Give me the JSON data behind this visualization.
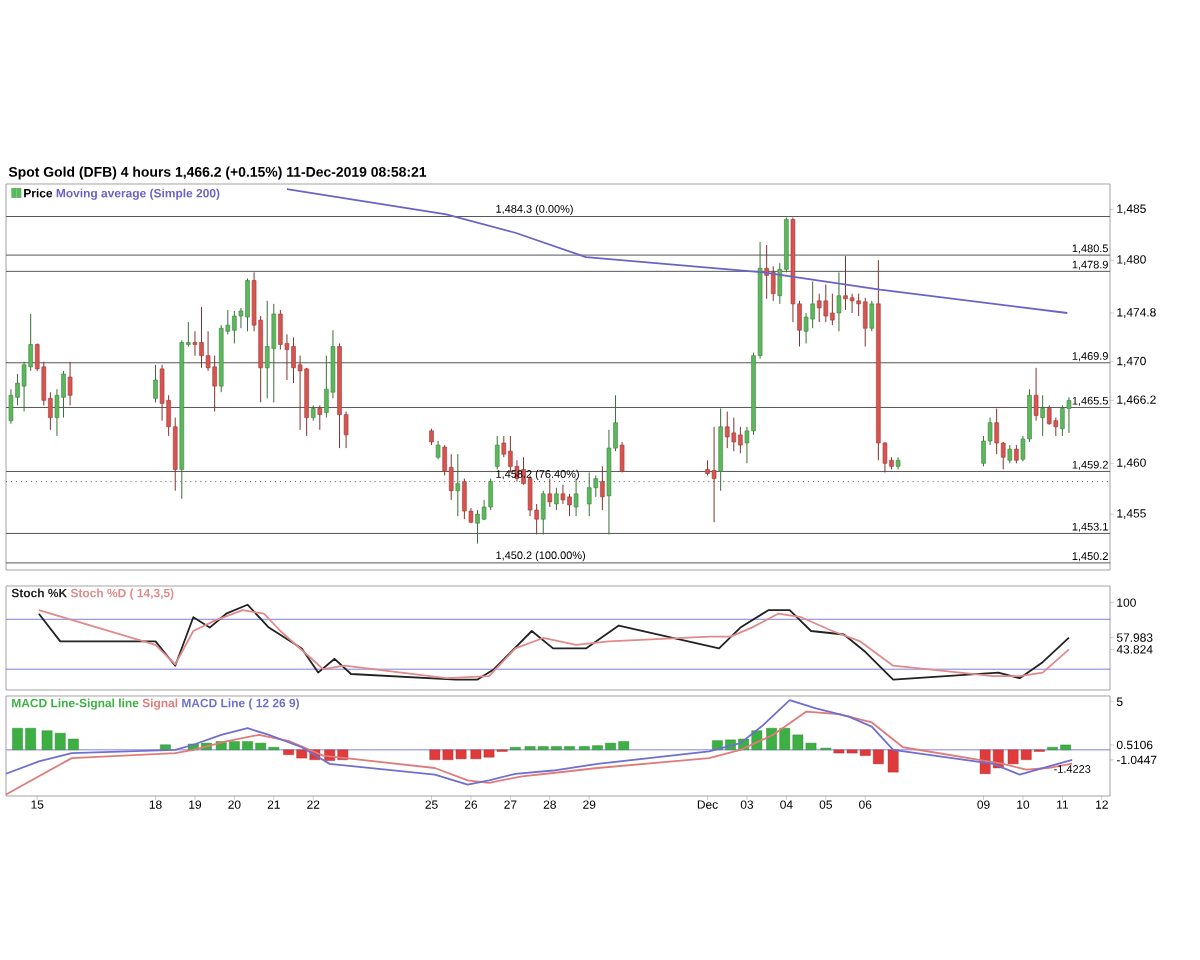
{
  "chart_data": [
    {
      "type": "candlestick",
      "title": "Spot Gold (DFB)   4 hours   1,466.2 (+0.15%)   11-Dec-2019 08:58:21",
      "legend": "top left",
      "tick_labels": "y",
      "xlim": [
        "2019-11-14T05:00",
        "2019-12-12T05:00"
      ],
      "ylim": [
        1449.5,
        1487.5
      ],
      "yticks": [
        {
          "value": 1455,
          "label": "1,455"
        },
        {
          "value": 1460,
          "label": "1,460"
        },
        {
          "value": 1466.2,
          "label": "1,466.2"
        },
        {
          "value": 1470,
          "label": "1,470"
        },
        {
          "value": 1474.8,
          "label": "1,474.8"
        },
        {
          "value": 1480,
          "label": "1,480"
        },
        {
          "value": 1485,
          "label": "1,485"
        }
      ],
      "series": [
        {
          "name": "Price",
          "type": "candlestick",
          "colors": [
            "#5cb85c",
            "#5cb85c",
            "#5cb85c",
            "#5cb85c",
            "#d9534f",
            "#d9534f",
            "#d9534f",
            "#5cb85c",
            "#5cb85c",
            "#d9534f",
            "#5cb85c",
            "#d9534f",
            "#d9534f",
            "#d9534f",
            "#5cb85c",
            "#5cb85c",
            "#d9534f",
            "#d9534f",
            "#d9534f",
            "#d9534f",
            "#5cb85c",
            "#5cb85c",
            "#5cb85c",
            "#5cb85c",
            "#5cb85c",
            "#d9534f",
            "#d9534f",
            "#5cb85c",
            "#5cb85c",
            "#d9534f",
            "#d9534f",
            "#d9534f",
            "#d9534f",
            "#d9534f",
            "#5cb85c",
            "#d9534f",
            "#5cb85c",
            "#5cb85c",
            "#d9534f",
            "#d9534f",
            "#d9534f",
            "#5cb85c",
            "#d9534f",
            "#d9534f",
            "#5cb85c",
            "#d9534f",
            "#d9534f",
            "#5cb85c",
            "#5cb85c",
            "#5cb85c",
            "#5cb85c",
            "#d9534f",
            "#d9534f",
            "#d9534f",
            "#d9534f",
            "#d9534f",
            "#d9534f",
            "#5cb85c",
            "#d9534f",
            "#5cb85c",
            "#d9534f",
            "#d9534f",
            "#5cb85c",
            "#5cb85c",
            "#5cb85c",
            "#d9534f",
            "#5cb85c",
            "#5cb85c",
            "#d9534f",
            "#d9534f",
            "#d9534f",
            "#5cb85c",
            "#d9534f",
            "#d9534f",
            "#d9534f",
            "#5cb85c",
            "#5cb85c",
            "#5cb85c",
            "#d9534f",
            "#d9534f",
            "#5cb85c",
            "#5cb85c",
            "#d9534f",
            "#d9534f",
            "#5cb85c",
            "#5cb85c",
            "#d9534f",
            "#d9534f",
            "#d9534f",
            "#5cb85c",
            "#d9534f",
            "#d9534f",
            "#d9534f",
            "#d9534f",
            "#5cb85c",
            "#d9534f",
            "#d9534f",
            "#d9534f",
            "#5cb85c",
            "#5cb85c",
            "#5cb85c",
            "#d9534f",
            "#d9534f",
            "#5cb85c",
            "#d9534f",
            "#5cb85c",
            "#5cb85c",
            "#d9534f",
            "#5cb85c",
            "#d9534f",
            "#d9534f",
            "#5cb85c",
            "#5cb85c"
          ],
          "x": [
            "2019-11-14T08:00",
            "2019-11-14T12:00",
            "2019-11-14T16:00",
            "2019-11-14T20:00",
            "2019-11-15T00:00",
            "2019-11-15T04:00",
            "2019-11-15T08:00",
            "2019-11-15T12:00",
            "2019-11-15T16:00",
            "2019-11-15T20:00",
            "2019-11-18T00:00",
            "2019-11-18T04:00",
            "2019-11-18T08:00",
            "2019-11-18T12:00",
            "2019-11-18T16:00",
            "2019-11-18T20:00",
            "2019-11-19T00:00",
            "2019-11-19T04:00",
            "2019-11-19T08:00",
            "2019-11-19T12:00",
            "2019-11-19T16:00",
            "2019-11-19T20:00",
            "2019-11-20T00:00",
            "2019-11-20T04:00",
            "2019-11-20T08:00",
            "2019-11-20T12:00",
            "2019-11-20T16:00",
            "2019-11-20T20:00",
            "2019-11-21T00:00",
            "2019-11-21T04:00",
            "2019-11-21T08:00",
            "2019-11-21T12:00",
            "2019-11-21T16:00",
            "2019-11-21T20:00",
            "2019-11-22T00:00",
            "2019-11-22T04:00",
            "2019-11-22T08:00",
            "2019-11-22T12:00",
            "2019-11-22T16:00",
            "2019-11-22T20:00",
            "2019-11-25T00:00",
            "2019-11-25T04:00",
            "2019-11-25T08:00",
            "2019-11-25T12:00",
            "2019-11-25T16:00",
            "2019-11-25T20:00",
            "2019-11-26T00:00",
            "2019-11-26T04:00",
            "2019-11-26T08:00",
            "2019-11-26T12:00",
            "2019-11-26T16:00",
            "2019-11-26T20:00",
            "2019-11-27T00:00",
            "2019-11-27T04:00",
            "2019-11-27T08:00",
            "2019-11-27T12:00",
            "2019-11-27T16:00",
            "2019-11-27T20:00",
            "2019-11-28T00:00",
            "2019-11-28T04:00",
            "2019-11-28T08:00",
            "2019-11-28T12:00",
            "2019-11-28T16:00",
            "2019-11-29T00:00",
            "2019-11-29T04:00",
            "2019-11-29T08:00",
            "2019-11-29T12:00",
            "2019-11-29T16:00",
            "2019-11-29T20:00",
            "2019-12-02T00:00",
            "2019-12-02T04:00",
            "2019-12-02T08:00",
            "2019-12-02T12:00",
            "2019-12-02T16:00",
            "2019-12-02T20:00",
            "2019-12-03T00:00",
            "2019-12-03T04:00",
            "2019-12-03T08:00",
            "2019-12-03T12:00",
            "2019-12-03T16:00",
            "2019-12-03T20:00",
            "2019-12-04T00:00",
            "2019-12-04T04:00",
            "2019-12-04T08:00",
            "2019-12-04T12:00",
            "2019-12-04T16:00",
            "2019-12-04T20:00",
            "2019-12-05T00:00",
            "2019-12-05T04:00",
            "2019-12-05T08:00",
            "2019-12-05T12:00",
            "2019-12-05T16:00",
            "2019-12-05T20:00",
            "2019-12-06T00:00",
            "2019-12-06T04:00",
            "2019-12-06T08:00",
            "2019-12-06T12:00",
            "2019-12-06T16:00",
            "2019-12-06T20:00",
            "2019-12-09T00:00",
            "2019-12-09T04:00",
            "2019-12-09T08:00",
            "2019-12-09T12:00",
            "2019-12-09T16:00",
            "2019-12-09T20:00",
            "2019-12-10T00:00",
            "2019-12-10T04:00",
            "2019-12-10T08:00",
            "2019-12-10T12:00",
            "2019-12-10T16:00",
            "2019-12-10T20:00",
            "2019-12-11T00:00",
            "2019-12-11T04:00"
          ],
          "ohlc": [
            [
              1464.2,
              1467.3,
              1463.9,
              1466.7
            ],
            [
              1466.5,
              1468.8,
              1465.7,
              1467.9
            ],
            [
              1467.6,
              1470.0,
              1465.1,
              1469.7
            ],
            [
              1469.5,
              1474.7,
              1469.1,
              1471.7
            ],
            [
              1471.7,
              1471.8,
              1469.1,
              1469.3
            ],
            [
              1469.5,
              1470.0,
              1465.7,
              1466.2
            ],
            [
              1466.4,
              1467.0,
              1463.3,
              1464.5
            ],
            [
              1464.5,
              1467.3,
              1462.7,
              1466.7
            ],
            [
              1466.5,
              1469.1,
              1464.5,
              1468.8
            ],
            [
              1468.5,
              1470.0,
              1465.7,
              1466.7
            ],
            [
              1466.4,
              1469.7,
              1466.0,
              1468.2
            ],
            [
              1469.3,
              1469.7,
              1464.2,
              1465.9
            ],
            [
              1466.2,
              1466.7,
              1462.7,
              1463.6
            ],
            [
              1463.6,
              1464.5,
              1457.3,
              1459.4
            ],
            [
              1459.4,
              1472.1,
              1456.5,
              1471.9
            ],
            [
              1471.7,
              1473.9,
              1471.5,
              1471.9
            ],
            [
              1471.9,
              1473.0,
              1470.6,
              1471.7
            ],
            [
              1471.9,
              1475.4,
              1469.4,
              1470.6
            ],
            [
              1470.6,
              1473.0,
              1469.1,
              1469.4
            ],
            [
              1469.5,
              1470.6,
              1465.1,
              1467.6
            ],
            [
              1467.6,
              1473.6,
              1467.0,
              1473.3
            ],
            [
              1473.0,
              1475.1,
              1472.7,
              1473.6
            ],
            [
              1473.1,
              1475.0,
              1471.8,
              1474.5
            ],
            [
              1474.5,
              1475.3,
              1473.3,
              1475.0
            ],
            [
              1474.4,
              1478.2,
              1473.0,
              1478.0
            ],
            [
              1478.0,
              1478.8,
              1473.0,
              1473.6
            ],
            [
              1474.1,
              1474.5,
              1466.0,
              1469.4
            ],
            [
              1469.4,
              1476.0,
              1466.4,
              1471.5
            ],
            [
              1471.3,
              1475.7,
              1466.0,
              1474.7
            ],
            [
              1474.7,
              1475.1,
              1471.2,
              1471.7
            ],
            [
              1471.8,
              1472.7,
              1468.2,
              1471.2
            ],
            [
              1471.5,
              1472.4,
              1467.9,
              1469.4
            ],
            [
              1469.7,
              1470.6,
              1463.3,
              1469.1
            ],
            [
              1469.3,
              1469.4,
              1462.7,
              1464.5
            ],
            [
              1464.5,
              1465.7,
              1464.2,
              1465.4
            ],
            [
              1465.4,
              1465.7,
              1463.3,
              1464.8
            ],
            [
              1465.0,
              1470.6,
              1464.5,
              1467.3
            ],
            [
              1467.0,
              1473.1,
              1466.4,
              1471.5
            ],
            [
              1471.5,
              1471.8,
              1461.5,
              1464.8
            ],
            [
              1464.8,
              1465.1,
              1461.5,
              1462.8
            ],
            [
              1463.2,
              1463.4,
              1461.8,
              1462.1
            ],
            [
              1460.6,
              1462.2,
              1460.4,
              1461.8
            ],
            [
              1461.6,
              1461.8,
              1458.8,
              1459.2
            ],
            [
              1459.6,
              1460.9,
              1456.4,
              1457.3
            ],
            [
              1457.3,
              1460.9,
              1454.8,
              1458.0
            ],
            [
              1458.2,
              1458.5,
              1454.5,
              1455.3
            ],
            [
              1455.3,
              1455.6,
              1454.1,
              1454.2
            ],
            [
              1454.1,
              1455.4,
              1452.1,
              1455.0
            ],
            [
              1454.5,
              1456.4,
              1454.4,
              1455.7
            ],
            [
              1455.7,
              1458.5,
              1455.4,
              1458.2
            ],
            [
              1459.7,
              1462.7,
              1459.4,
              1461.8
            ],
            [
              1462.0,
              1462.7,
              1460.6,
              1460.9
            ],
            [
              1461.2,
              1462.7,
              1459.1,
              1459.7
            ],
            [
              1459.7,
              1460.3,
              1458.2,
              1458.5
            ],
            [
              1459.4,
              1460.6,
              1457.9,
              1458.0
            ],
            [
              1458.5,
              1458.8,
              1454.8,
              1455.4
            ],
            [
              1455.4,
              1456.0,
              1453.0,
              1454.5
            ],
            [
              1454.5,
              1457.3,
              1453.0,
              1457.0
            ],
            [
              1457.0,
              1458.5,
              1455.7,
              1456.2
            ],
            [
              1456.0,
              1457.6,
              1455.4,
              1457.0
            ],
            [
              1457.0,
              1457.9,
              1456.0,
              1456.4
            ],
            [
              1456.7,
              1457.0,
              1454.8,
              1455.9
            ],
            [
              1455.7,
              1458.5,
              1454.8,
              1457.0
            ],
            [
              1456.0,
              1459.1,
              1454.8,
              1457.6
            ],
            [
              1457.6,
              1458.8,
              1456.7,
              1458.5
            ],
            [
              1458.2,
              1459.7,
              1455.4,
              1456.7
            ],
            [
              1456.8,
              1463.3,
              1453.0,
              1461.5
            ],
            [
              1461.5,
              1466.7,
              1461.2,
              1464.0
            ],
            [
              1461.8,
              1462.1,
              1459.1,
              1459.2
            ],
            [
              1459.4,
              1460.3,
              1458.8,
              1459.0
            ],
            [
              1459.3,
              1463.6,
              1454.2,
              1458.5
            ],
            [
              1459.2,
              1465.4,
              1457.3,
              1463.6
            ],
            [
              1463.6,
              1465.1,
              1461.5,
              1462.6
            ],
            [
              1463.0,
              1464.5,
              1461.2,
              1462.1
            ],
            [
              1462.8,
              1463.6,
              1461.0,
              1461.8
            ],
            [
              1462.0,
              1463.6,
              1460.0,
              1463.2
            ],
            [
              1463.2,
              1470.9,
              1462.8,
              1470.6
            ],
            [
              1470.6,
              1481.8,
              1470.3,
              1479.2
            ],
            [
              1479.2,
              1481.5,
              1476.2,
              1478.5
            ],
            [
              1478.8,
              1479.4,
              1476.0,
              1476.7
            ],
            [
              1476.5,
              1479.7,
              1475.7,
              1479.1
            ],
            [
              1479.1,
              1484.2,
              1478.8,
              1484.0
            ],
            [
              1484.0,
              1484.2,
              1473.9,
              1475.7
            ],
            [
              1475.7,
              1476.0,
              1471.5,
              1473.1
            ],
            [
              1473.0,
              1474.8,
              1471.8,
              1474.4
            ],
            [
              1474.2,
              1477.9,
              1473.3,
              1475.7
            ],
            [
              1476.0,
              1476.7,
              1473.9,
              1475.3
            ],
            [
              1476.0,
              1477.6,
              1473.9,
              1474.5
            ],
            [
              1474.8,
              1476.7,
              1473.6,
              1474.1
            ],
            [
              1474.8,
              1478.8,
              1473.0,
              1476.5
            ],
            [
              1476.5,
              1480.4,
              1475.1,
              1476.2
            ],
            [
              1476.3,
              1476.7,
              1474.8,
              1476.0
            ],
            [
              1476.0,
              1476.7,
              1474.5,
              1475.7
            ],
            [
              1475.9,
              1476.3,
              1471.5,
              1473.3
            ],
            [
              1473.3,
              1476.0,
              1473.0,
              1475.7
            ],
            [
              1475.7,
              1480.0,
              1460.3,
              1462.0
            ],
            [
              1462.0,
              1462.1,
              1459.1,
              1460.0
            ],
            [
              1460.3,
              1460.6,
              1459.4,
              1459.7
            ],
            [
              1459.7,
              1460.6,
              1459.4,
              1460.3
            ],
            [
              1460.0,
              1462.7,
              1459.7,
              1462.2
            ],
            [
              1462.2,
              1464.5,
              1461.8,
              1464.0
            ],
            [
              1464.0,
              1465.4,
              1460.9,
              1462.0
            ],
            [
              1462.0,
              1462.1,
              1459.4,
              1460.6
            ],
            [
              1460.3,
              1461.8,
              1460.0,
              1461.4
            ],
            [
              1461.4,
              1461.8,
              1460.0,
              1460.3
            ],
            [
              1460.4,
              1462.7,
              1460.2,
              1462.4
            ],
            [
              1462.4,
              1467.3,
              1462.1,
              1466.7
            ],
            [
              1466.7,
              1469.4,
              1464.2,
              1464.7
            ],
            [
              1464.5,
              1466.7,
              1462.7,
              1465.4
            ],
            [
              1465.4,
              1465.7,
              1463.8,
              1463.9
            ],
            [
              1464.2,
              1464.5,
              1462.7,
              1463.6
            ],
            [
              1463.4,
              1465.7,
              1462.7,
              1465.4
            ],
            [
              1465.4,
              1466.5,
              1463.0,
              1466.2
            ]
          ]
        },
        {
          "name": "Moving average (Simple 200)",
          "type": "line",
          "color": "#6b62c8",
          "x": [
            "2019-11-21T08:00",
            "2019-11-25T09:00",
            "2019-11-27T03:00",
            "2019-11-28T22:00",
            "2019-12-03T10:00",
            "2019-12-06T09:00",
            "2019-12-11T03:00"
          ],
          "values": [
            1487.0,
            1484.5,
            1482.7,
            1480.3,
            1478.8,
            1477.1,
            1474.8
          ]
        }
      ],
      "ref_lines": [
        {
          "axis": "y",
          "value": 1484.3,
          "color": "#555555"
        },
        {
          "axis": "y",
          "value": 1480.5,
          "label": "1,480.5",
          "color": "#555555"
        },
        {
          "axis": "y",
          "value": 1478.9,
          "label": "1,478.9",
          "color": "#555555"
        },
        {
          "axis": "y",
          "value": 1469.9,
          "label": "1,469.9",
          "color": "#555555"
        },
        {
          "axis": "y",
          "value": 1465.5,
          "label": "1,465.5",
          "color": "#555555"
        },
        {
          "axis": "y",
          "value": 1459.2,
          "label": "1,459.2",
          "color": "#555555"
        },
        {
          "axis": "y",
          "value": 1458.2,
          "color": "#555555",
          "line_style": "dotted"
        },
        {
          "axis": "y",
          "value": 1453.1,
          "label": "1,453.1",
          "color": "#555555"
        },
        {
          "axis": "y",
          "value": 1450.2,
          "label": "1,450.2",
          "color": "#555555"
        }
      ],
      "annotations": [
        {
          "text": "1,484.3 (0.00%)",
          "x": "2019-11-26T14:00",
          "y": 1484.3
        },
        {
          "text": "1,458.2 (76.40%)",
          "x": "2019-11-26T14:00",
          "y": 1458.2
        },
        {
          "text": "1,450.2 (100.00%)",
          "x": "2019-11-26T14:00",
          "y": 1450.2
        }
      ]
    },
    {
      "type": "line",
      "legend": "top left",
      "tick_labels": "y",
      "xlim": [
        "2019-11-14T05:00",
        "2019-12-12T05:00"
      ],
      "ylim": [
        -5,
        120
      ],
      "yticks": [
        {
          "value": 43.824,
          "label": "43.824"
        },
        {
          "value": 57.983,
          "label": "57.983"
        },
        {
          "value": 100,
          "label": "100"
        }
      ],
      "series": [
        {
          "name": "Stoch %K",
          "color": "#222222",
          "x": [
            "2019-11-15T01:00",
            "2019-11-15T14:00",
            "2019-11-18T00:00",
            "2019-11-18T12:00",
            "2019-11-18T23:00",
            "2019-11-19T09:00",
            "2019-11-19T19:00",
            "2019-11-20T08:00",
            "2019-11-20T21:00",
            "2019-11-21T17:00",
            "2019-11-22T03:00",
            "2019-11-22T13:00",
            "2019-11-22T23:00",
            "2019-11-25T15:00",
            "2019-11-26T04:00",
            "2019-11-26T14:00",
            "2019-11-27T13:00",
            "2019-11-28T02:00",
            "2019-11-28T22:00",
            "2019-11-29T18:00",
            "2019-12-02T07:00",
            "2019-12-02T20:00",
            "2019-12-03T13:00",
            "2019-12-04T02:00",
            "2019-12-04T15:00",
            "2019-12-05T11:00",
            "2019-12-06T00:00",
            "2019-12-06T17:00",
            "2019-12-09T09:00",
            "2019-12-09T22:00",
            "2019-12-10T12:00",
            "2019-12-11T04:00"
          ],
          "values": [
            86.7,
            53.4,
            53.4,
            24.2,
            82.5,
            70.0,
            86.7,
            97.5,
            70.0,
            45.0,
            15.9,
            32.5,
            14.2,
            7.5,
            7.5,
            20.0,
            65.9,
            45.0,
            45.0,
            72.5,
            45.0,
            70.0,
            90.9,
            90.9,
            65.9,
            61.7,
            40.9,
            7.5,
            15.9,
            9.2,
            28.4,
            57.983
          ]
        },
        {
          "name": "Stoch %D ( 14,3,5)",
          "color": "#e08a8a",
          "x": [
            "2019-11-15T01:00",
            "2019-11-18T00:00",
            "2019-11-18T12:00",
            "2019-11-18T23:00",
            "2019-11-19T12:00",
            "2019-11-20T05:00",
            "2019-11-20T18:00",
            "2019-11-21T04:00",
            "2019-11-21T23:00",
            "2019-11-22T06:00",
            "2019-11-22T19:00",
            "2019-11-25T09:00",
            "2019-11-26T11:00",
            "2019-11-27T03:00",
            "2019-11-27T20:00",
            "2019-11-28T16:00",
            "2019-11-29T12:00",
            "2019-12-02T01:00",
            "2019-12-02T14:00",
            "2019-12-03T03:00",
            "2019-12-03T19:00",
            "2019-12-04T09:00",
            "2019-12-05T04:00",
            "2019-12-05T21:00",
            "2019-12-06T17:00",
            "2019-12-09T06:00",
            "2019-12-09T22:00",
            "2019-12-10T12:00",
            "2019-12-11T04:00"
          ],
          "values": [
            90.9,
            49.2,
            25.9,
            65.9,
            78.4,
            90.9,
            86.7,
            65.9,
            32.5,
            20.0,
            24.2,
            9.2,
            11.7,
            45.0,
            57.5,
            49.2,
            53.4,
            59.2,
            59.2,
            70.0,
            86.7,
            82.5,
            65.9,
            53.4,
            24.2,
            11.7,
            11.7,
            15.9,
            43.824
          ]
        }
      ],
      "ref_lines": [
        {
          "axis": "y",
          "value": 80,
          "color": "#8080e0"
        },
        {
          "axis": "y",
          "value": 20,
          "color": "#8080e0"
        }
      ]
    },
    {
      "type": "line",
      "legend": "top left",
      "xlim": [
        "2019-11-14T05:00",
        "2019-12-12T05:00"
      ],
      "ylim": [
        -4.8,
        5.6
      ],
      "yticks": [
        {
          "value": -1.0447,
          "label": "-1.0447"
        },
        {
          "value": 0.5106,
          "label": "0.5106"
        },
        {
          "value": 5,
          "label": "5"
        }
      ],
      "xticks": [
        {
          "value": "2019-11-15",
          "label": "15"
        },
        {
          "value": "2019-11-18",
          "label": "18"
        },
        {
          "value": "2019-11-19",
          "label": "19"
        },
        {
          "value": "2019-11-20",
          "label": "20"
        },
        {
          "value": "2019-11-21",
          "label": "21"
        },
        {
          "value": "2019-11-22",
          "label": "22"
        },
        {
          "value": "2019-11-25",
          "label": "25"
        },
        {
          "value": "2019-11-26",
          "label": "26"
        },
        {
          "value": "2019-11-27",
          "label": "27"
        },
        {
          "value": "2019-11-28",
          "label": "28"
        },
        {
          "value": "2019-11-29",
          "label": "29"
        },
        {
          "value": "2019-12-02",
          "label": "Dec"
        },
        {
          "value": "2019-12-03",
          "label": "03"
        },
        {
          "value": "2019-12-04",
          "label": "04"
        },
        {
          "value": "2019-12-05",
          "label": "05"
        },
        {
          "value": "2019-12-06",
          "label": "06"
        },
        {
          "value": "2019-12-09",
          "label": "09"
        },
        {
          "value": "2019-12-10",
          "label": "10"
        },
        {
          "value": "2019-12-11",
          "label": "11"
        },
        {
          "value": "2019-12-12",
          "label": "12"
        }
      ],
      "series": [
        {
          "name": "MACD Line-Signal line",
          "type": "bar",
          "color": "#3cb043",
          "x": [
            "2019-11-14T12:00",
            "2019-11-14T20:00",
            "2019-11-15T06:00",
            "2019-11-15T14:00",
            "2019-11-15T22:00",
            "2019-11-18T06:00",
            "2019-11-18T23:00",
            "2019-11-19T07:00",
            "2019-11-19T16:00",
            "2019-11-20T00:00",
            "2019-11-20T08:00",
            "2019-11-20T16:00",
            "2019-11-21T00:00",
            "2019-11-21T09:00",
            "2019-11-21T17:00",
            "2019-11-22T01:00",
            "2019-11-22T10:00",
            "2019-11-22T18:00",
            "2019-11-25T02:00",
            "2019-11-25T10:00",
            "2019-11-25T18:00",
            "2019-11-26T03:00",
            "2019-11-26T11:00",
            "2019-11-26T19:00",
            "2019-11-27T03:00",
            "2019-11-27T12:00",
            "2019-11-27T20:00",
            "2019-11-28T04:00",
            "2019-11-28T12:00",
            "2019-11-28T21:00",
            "2019-11-29T05:00",
            "2019-11-29T13:00",
            "2019-11-29T21:00",
            "2019-12-02T06:00",
            "2019-12-02T14:00",
            "2019-12-02T22:00",
            "2019-12-03T06:00",
            "2019-12-03T15:00",
            "2019-12-03T23:00",
            "2019-12-04T07:00",
            "2019-12-04T15:00",
            "2019-12-05T00:00",
            "2019-12-05T08:00",
            "2019-12-05T16:00",
            "2019-12-06T00:00",
            "2019-12-06T08:00",
            "2019-12-06T17:00",
            "2019-12-09T01:00",
            "2019-12-09T09:00",
            "2019-12-09T18:00",
            "2019-12-10T02:00",
            "2019-12-10T10:00",
            "2019-12-10T18:00",
            "2019-12-11T02:00"
          ],
          "values": [
            2.25,
            2.25,
            1.99,
            1.73,
            1.13,
            0.53,
            0.61,
            0.7,
            0.87,
            0.87,
            0.87,
            0.7,
            0.27,
            -0.51,
            -0.86,
            -1.03,
            -1.12,
            -1.03,
            -1.03,
            -1.03,
            -0.94,
            -0.94,
            -0.77,
            -0.17,
            0.27,
            0.35,
            0.35,
            0.35,
            0.35,
            0.35,
            0.44,
            0.7,
            0.87,
            0.96,
            1.04,
            1.13,
            1.99,
            2.25,
            2.25,
            1.56,
            0.7,
            0.18,
            -0.34,
            -0.34,
            -0.6,
            -1.46,
            -2.32,
            -2.49,
            -1.89,
            -1.46,
            -1.03,
            -0.17,
            0.27,
            0.5106
          ],
          "colors": [
            "#3cb043",
            "#3cb043",
            "#3cb043",
            "#3cb043",
            "#3cb043",
            "#3cb043",
            "#3cb043",
            "#3cb043",
            "#3cb043",
            "#3cb043",
            "#3cb043",
            "#3cb043",
            "#3cb043",
            "#e03a3a",
            "#e03a3a",
            "#e03a3a",
            "#e03a3a",
            "#e03a3a",
            "#e03a3a",
            "#e03a3a",
            "#e03a3a",
            "#e03a3a",
            "#e03a3a",
            "#e03a3a",
            "#3cb043",
            "#3cb043",
            "#3cb043",
            "#3cb043",
            "#3cb043",
            "#3cb043",
            "#3cb043",
            "#3cb043",
            "#3cb043",
            "#3cb043",
            "#3cb043",
            "#3cb043",
            "#3cb043",
            "#3cb043",
            "#3cb043",
            "#3cb043",
            "#3cb043",
            "#3cb043",
            "#e03a3a",
            "#e03a3a",
            "#e03a3a",
            "#e03a3a",
            "#e03a3a",
            "#e03a3a",
            "#e03a3a",
            "#e03a3a",
            "#e03a3a",
            "#e03a3a",
            "#3cb043",
            "#3cb043"
          ]
        },
        {
          "name": "Signal",
          "type": "line",
          "color": "#e07b7b",
          "x": [
            "2019-11-14T05:00",
            "2019-11-15T01:00",
            "2019-11-15T21:00",
            "2019-11-18T12:00",
            "2019-11-18T23:00",
            "2019-11-19T19:00",
            "2019-11-20T15:00",
            "2019-11-21T10:00",
            "2019-11-22T06:00",
            "2019-11-25T02:00",
            "2019-11-25T22:00",
            "2019-11-26T11:00",
            "2019-11-27T07:00",
            "2019-11-28T02:00",
            "2019-11-29T05:00",
            "2019-12-02T01:00",
            "2019-12-02T20:00",
            "2019-12-03T16:00",
            "2019-12-04T12:00",
            "2019-12-05T08:00",
            "2019-12-06T04:00",
            "2019-12-06T23:00",
            "2019-12-09T12:00",
            "2019-12-10T02:00",
            "2019-12-10T15:00",
            "2019-12-11T06:00"
          ],
          "values": [
            -4.65,
            -2.75,
            -0.86,
            -0.34,
            0.0,
            0.87,
            1.56,
            0.87,
            -0.6,
            -1.89,
            -3.18,
            -3.44,
            -2.75,
            -2.41,
            -1.89,
            -0.86,
            0.0,
            1.56,
            3.97,
            3.72,
            2.85,
            0.27,
            -1.46,
            -2.06,
            -1.89,
            -1.4223
          ]
        },
        {
          "name": "MACD Line ( 12 26 9)",
          "type": "line",
          "color": "#6f6fd0",
          "x": [
            "2019-11-14T05:00",
            "2019-11-15T01:00",
            "2019-11-15T21:00",
            "2019-11-18T12:00",
            "2019-11-18T23:00",
            "2019-11-19T16:00",
            "2019-11-20T08:00",
            "2019-11-20T21:00",
            "2019-11-21T17:00",
            "2019-11-22T10:00",
            "2019-11-25T02:00",
            "2019-11-25T22:00",
            "2019-11-26T11:00",
            "2019-11-27T03:00",
            "2019-11-28T02:00",
            "2019-11-29T05:00",
            "2019-12-02T01:00",
            "2019-12-02T20:00",
            "2019-12-03T10:00",
            "2019-12-04T02:00",
            "2019-12-04T18:00",
            "2019-12-05T14:00",
            "2019-12-06T04:00",
            "2019-12-06T17:00",
            "2019-12-09T06:00",
            "2019-12-09T22:00",
            "2019-12-10T12:00",
            "2019-12-11T06:00"
          ],
          "values": [
            -2.49,
            -1.2,
            -0.34,
            0.0,
            0.53,
            1.56,
            2.25,
            1.56,
            0.27,
            -1.46,
            -2.58,
            -3.61,
            -3.18,
            -2.49,
            -2.15,
            -1.46,
            -0.17,
            0.7,
            2.59,
            5.18,
            4.32,
            3.46,
            2.42,
            0.0,
            -1.46,
            -2.58,
            -1.89,
            -1.0447
          ]
        }
      ],
      "ref_lines": [
        {
          "axis": "y",
          "value": 0,
          "color": "#8080e0"
        }
      ],
      "annotations": [
        {
          "text": "-1.4223",
          "x": "2019-12-11T06:00",
          "y": -1.4223
        }
      ]
    }
  ]
}
